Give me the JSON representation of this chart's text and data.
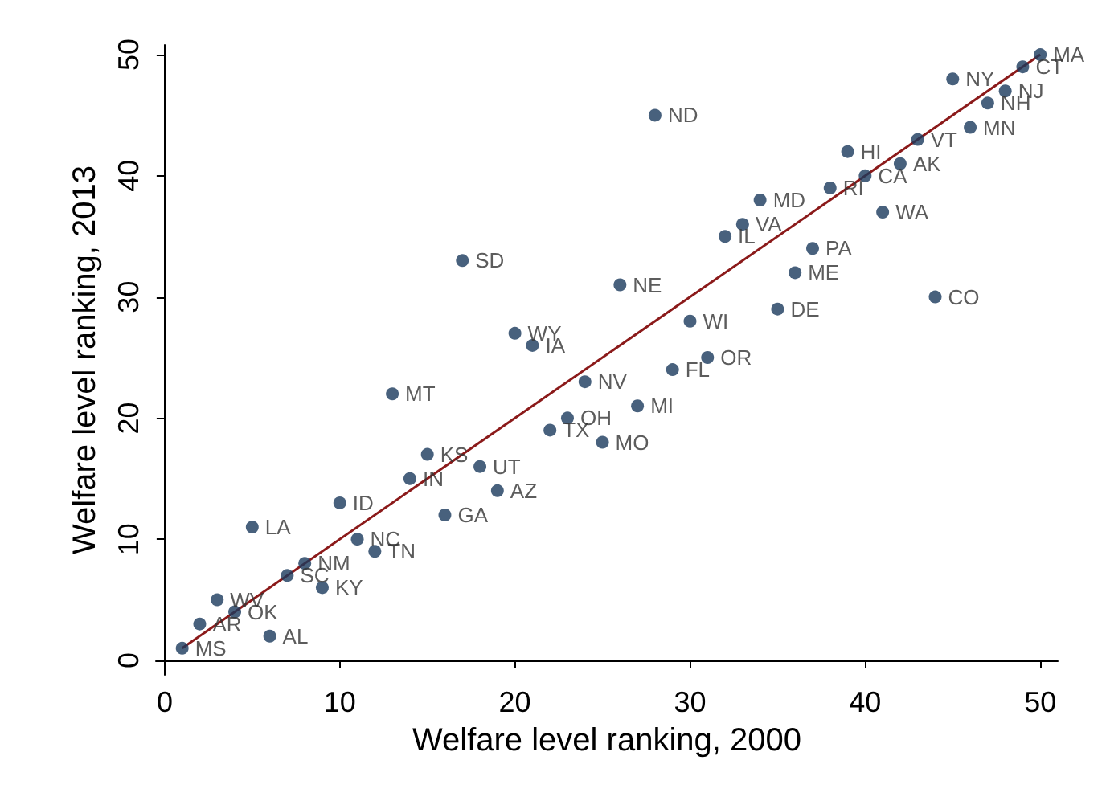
{
  "chart_data": {
    "type": "scatter",
    "xlabel": "Welfare level ranking, 2000",
    "ylabel": "Welfare level ranking, 2013",
    "xlim": [
      -0.5,
      51
    ],
    "ylim": [
      -1.2,
      50.8
    ],
    "xticks": [
      0,
      10,
      20,
      30,
      40,
      50
    ],
    "yticks": [
      0,
      10,
      20,
      30,
      40,
      50
    ],
    "grid": false,
    "series": [
      {
        "color": "#1a3a5c",
        "marker": "circle",
        "x": [
          1,
          2,
          3,
          4,
          5,
          6,
          7,
          8,
          9,
          10,
          11,
          12,
          13,
          14,
          15,
          16,
          17,
          18,
          19,
          20,
          21,
          22,
          23,
          24,
          25,
          26,
          27,
          28,
          29,
          30,
          31,
          32,
          33,
          34,
          35,
          36,
          37,
          38,
          39,
          40,
          41,
          42,
          43,
          44,
          45,
          46,
          47,
          48,
          49,
          50
        ],
        "values": [
          1,
          3,
          5,
          4,
          11,
          2,
          7,
          8,
          6,
          13,
          10,
          9,
          22,
          15,
          17,
          12,
          33,
          16,
          14,
          27,
          26,
          19,
          20,
          23,
          18,
          31,
          21,
          45,
          24,
          28,
          25,
          35,
          36,
          38,
          29,
          32,
          34,
          39,
          42,
          40,
          37,
          41,
          43,
          30,
          48,
          44,
          46,
          47,
          49,
          50
        ],
        "value_labels": [
          "MS",
          "AR",
          "WV",
          "OK",
          "LA",
          "AL",
          "SC",
          "NM",
          "KY",
          "ID",
          "NC",
          "TN",
          "MT",
          "IN",
          "KS",
          "GA",
          "SD",
          "UT",
          "AZ",
          "WY",
          "IA",
          "TX",
          "OH",
          "NV",
          "MO",
          "NE",
          "MI",
          "ND",
          "FL",
          "WI",
          "OR",
          "IL",
          "VA",
          "MD",
          "DE",
          "ME",
          "PA",
          "RI",
          "HI",
          "CA",
          "WA",
          "AK",
          "VT",
          "CO",
          "NY",
          "MN",
          "NH",
          "NJ",
          "CT",
          "MA"
        ]
      },
      {
        "type": "line",
        "color": "#8b1a1a",
        "marker": "none",
        "line_style": "solid",
        "x": [
          1,
          50
        ],
        "values": [
          1,
          50
        ]
      }
    ]
  }
}
